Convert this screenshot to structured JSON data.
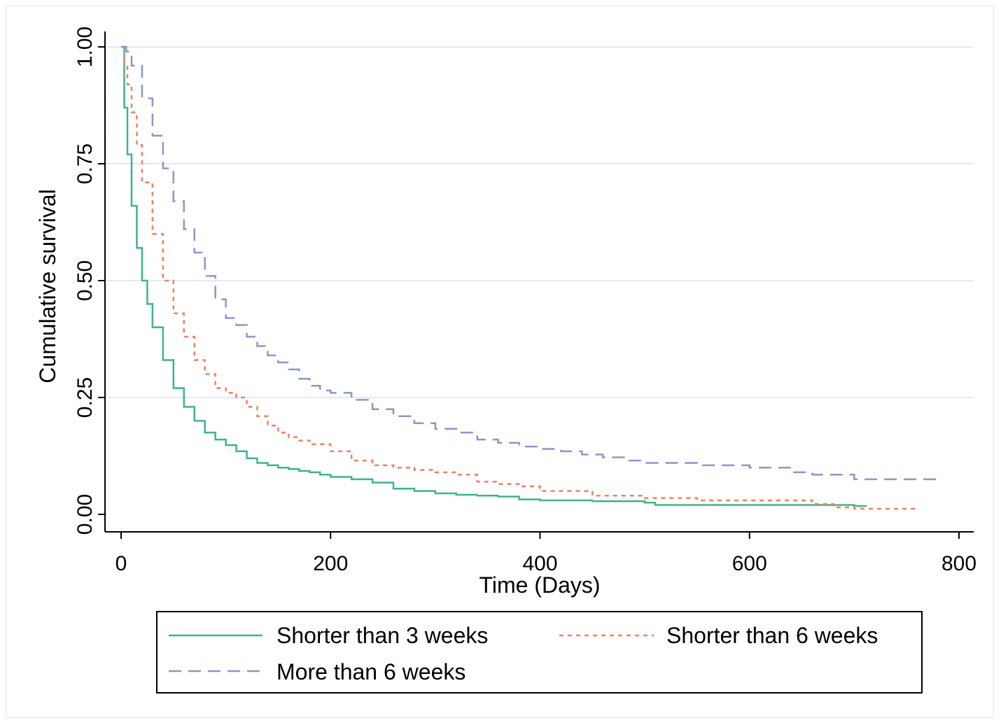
{
  "chart_data": {
    "type": "line",
    "title": "",
    "xlabel": "Time (Days)",
    "ylabel": "Cumulative survival",
    "xlim": [
      0,
      800
    ],
    "ylim": [
      0,
      1
    ],
    "xticks": [
      "0",
      "200",
      "400",
      "600",
      "800"
    ],
    "yticks": [
      "0.00",
      "0.25",
      "0.50",
      "0.75",
      "1.00"
    ],
    "grid": "horizontal",
    "legend_position": "bottom",
    "colors": {
      "short3": "#3db48c",
      "short6": "#f08060",
      "more6": "#8c96c8",
      "grid": "#e0ecef"
    },
    "series": [
      {
        "name": "Shorter than 3 weeks",
        "style": "solid",
        "x": [
          0,
          3,
          6,
          10,
          15,
          20,
          25,
          30,
          40,
          50,
          60,
          70,
          80,
          90,
          100,
          110,
          120,
          130,
          140,
          150,
          160,
          170,
          180,
          190,
          200,
          220,
          240,
          260,
          280,
          300,
          320,
          340,
          360,
          380,
          400,
          450,
          500,
          510,
          550,
          600,
          650,
          700,
          712
        ],
        "y": [
          1.0,
          0.87,
          0.77,
          0.66,
          0.57,
          0.5,
          0.45,
          0.4,
          0.33,
          0.27,
          0.23,
          0.2,
          0.175,
          0.16,
          0.148,
          0.135,
          0.12,
          0.11,
          0.105,
          0.1,
          0.097,
          0.093,
          0.09,
          0.085,
          0.08,
          0.075,
          0.068,
          0.055,
          0.05,
          0.045,
          0.042,
          0.04,
          0.038,
          0.032,
          0.03,
          0.028,
          0.025,
          0.02,
          0.02,
          0.02,
          0.02,
          0.018,
          0.018
        ]
      },
      {
        "name": "Shorter than 6 weeks",
        "style": "dotted",
        "x": [
          0,
          3,
          6,
          10,
          15,
          20,
          30,
          40,
          50,
          60,
          70,
          80,
          90,
          100,
          110,
          120,
          130,
          140,
          150,
          160,
          170,
          180,
          200,
          220,
          240,
          260,
          280,
          300,
          320,
          340,
          360,
          380,
          400,
          450,
          500,
          550,
          600,
          640,
          660,
          680,
          700,
          760
        ],
        "y": [
          1.0,
          0.96,
          0.92,
          0.86,
          0.79,
          0.71,
          0.6,
          0.5,
          0.43,
          0.38,
          0.33,
          0.3,
          0.27,
          0.26,
          0.25,
          0.23,
          0.21,
          0.19,
          0.175,
          0.165,
          0.158,
          0.15,
          0.135,
          0.115,
          0.105,
          0.1,
          0.095,
          0.09,
          0.085,
          0.07,
          0.065,
          0.06,
          0.05,
          0.04,
          0.035,
          0.03,
          0.03,
          0.03,
          0.022,
          0.015,
          0.012,
          0.01
        ]
      },
      {
        "name": "More than 6 weeks",
        "style": "dashed",
        "x": [
          0,
          5,
          10,
          20,
          30,
          40,
          50,
          60,
          70,
          80,
          90,
          100,
          110,
          120,
          130,
          140,
          150,
          160,
          170,
          180,
          190,
          200,
          220,
          240,
          260,
          280,
          300,
          320,
          340,
          360,
          380,
          400,
          420,
          440,
          460,
          480,
          500,
          550,
          600,
          640,
          660,
          700,
          780
        ],
        "y": [
          1.0,
          0.99,
          0.96,
          0.89,
          0.81,
          0.74,
          0.67,
          0.61,
          0.56,
          0.51,
          0.46,
          0.42,
          0.405,
          0.38,
          0.36,
          0.34,
          0.325,
          0.31,
          0.29,
          0.275,
          0.265,
          0.26,
          0.245,
          0.225,
          0.21,
          0.195,
          0.183,
          0.175,
          0.16,
          0.153,
          0.145,
          0.14,
          0.135,
          0.128,
          0.122,
          0.115,
          0.11,
          0.105,
          0.1,
          0.09,
          0.085,
          0.075,
          0.075
        ]
      }
    ]
  }
}
